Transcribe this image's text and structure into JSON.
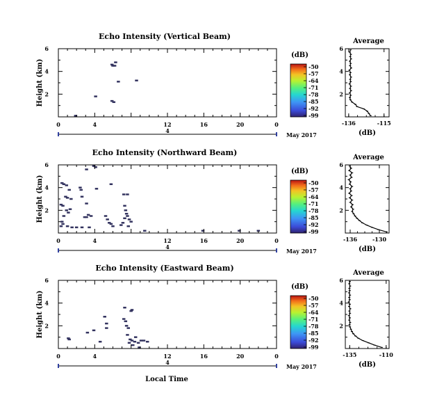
{
  "figure": {
    "x_axis_label": "Local Time",
    "date_label": "May 2017",
    "day_marker": "4",
    "cell_color": "#33335f"
  },
  "chart_data": [
    {
      "type": "heatmap",
      "title": "Echo Intensity (Vertical Beam)",
      "ylabel": "Height (km)",
      "xlim": [
        0,
        24
      ],
      "ylim": [
        0,
        6
      ],
      "x_ticks": [
        "0",
        "4",
        "12",
        "16",
        "20",
        "0"
      ],
      "y_ticks": [
        "2",
        "4",
        "6"
      ],
      "colorbar": {
        "unit": "(dB)",
        "ticks": [
          "-50",
          "-57",
          "-64",
          "-71",
          "-78",
          "-85",
          "-92",
          "-99"
        ]
      },
      "cells": [
        [
          6.0,
          4.5
        ],
        [
          6.2,
          4.5
        ],
        [
          6.3,
          4.8
        ],
        [
          5.9,
          4.6
        ],
        [
          6.6,
          3.1
        ],
        [
          4.1,
          1.8
        ],
        [
          5.9,
          1.4
        ],
        [
          6.1,
          1.3
        ],
        [
          8.6,
          3.2
        ],
        [
          1.9,
          0.1
        ]
      ],
      "profile": {
        "title": "Average",
        "xlabel": "(dB)",
        "x_ticks": [
          "-136",
          "-115"
        ],
        "y_ticks": [
          "2",
          "4",
          "6"
        ],
        "xlim": [
          -138,
          -112
        ],
        "ylim": [
          0,
          6
        ],
        "x": [
          -123,
          -124,
          -125,
          -127,
          -131,
          -132,
          -134,
          -135,
          -135.3,
          -134.8,
          -135.4,
          -134.6,
          -135.2,
          -134.7,
          -135.5,
          -134.8,
          -135.1,
          -134.6,
          -135.3,
          -134.9,
          -135.6,
          -134.5,
          -135.2,
          -134.8,
          -135.3,
          -134.6,
          -135.1,
          -134.7,
          -135.4,
          -134.9
        ],
        "y": [
          0.1,
          0.3,
          0.5,
          0.7,
          0.9,
          1.1,
          1.3,
          1.5,
          1.7,
          1.9,
          2.1,
          2.3,
          2.5,
          2.7,
          2.9,
          3.1,
          3.3,
          3.5,
          3.7,
          3.9,
          4.1,
          4.3,
          4.5,
          4.7,
          4.9,
          5.1,
          5.3,
          5.5,
          5.7,
          5.9
        ]
      }
    },
    {
      "type": "heatmap",
      "title": "Echo Intensity (Northward Beam)",
      "ylabel": "Height (km)",
      "xlim": [
        0,
        24
      ],
      "ylim": [
        0,
        6
      ],
      "x_ticks": [
        "0",
        "4",
        "12",
        "16",
        "20",
        "0"
      ],
      "y_ticks": [
        "2",
        "4",
        "6"
      ],
      "colorbar": {
        "unit": "(dB)",
        "ticks": [
          "-50",
          "-57",
          "-64",
          "-71",
          "-78",
          "-85",
          "-92",
          "-99"
        ]
      },
      "cells": [
        [
          0.4,
          4.4
        ],
        [
          0.6,
          4.3
        ],
        [
          0.9,
          4.2
        ],
        [
          1.2,
          3.8
        ],
        [
          0.8,
          3.2
        ],
        [
          1.0,
          3.1
        ],
        [
          1.4,
          3.0
        ],
        [
          0.3,
          2.5
        ],
        [
          0.5,
          2.4
        ],
        [
          0.9,
          2.0
        ],
        [
          1.1,
          1.8
        ],
        [
          1.3,
          2.1
        ],
        [
          0.6,
          1.5
        ],
        [
          0.4,
          1.0
        ],
        [
          0.5,
          0.8
        ],
        [
          1.0,
          0.6
        ],
        [
          1.5,
          0.5
        ],
        [
          2.0,
          0.5
        ],
        [
          2.6,
          0.5
        ],
        [
          3.4,
          0.5
        ],
        [
          3.1,
          1.4
        ],
        [
          3.3,
          1.6
        ],
        [
          3.6,
          1.5
        ],
        [
          2.4,
          4.0
        ],
        [
          2.5,
          3.8
        ],
        [
          3.1,
          5.6
        ],
        [
          4.1,
          5.8
        ],
        [
          3.9,
          5.9
        ],
        [
          2.9,
          1.4
        ],
        [
          5.4,
          1.2
        ],
        [
          5.6,
          0.9
        ],
        [
          5.8,
          0.8
        ],
        [
          5.2,
          1.5
        ],
        [
          6.0,
          0.6
        ],
        [
          7.2,
          3.4
        ],
        [
          7.6,
          3.4
        ],
        [
          7.3,
          2.4
        ],
        [
          7.4,
          2.0
        ],
        [
          7.5,
          1.7
        ],
        [
          7.6,
          1.5
        ],
        [
          7.3,
          1.3
        ],
        [
          7.8,
          1.2
        ],
        [
          8.0,
          1.0
        ],
        [
          7.7,
          0.6
        ],
        [
          7.1,
          0.9
        ],
        [
          6.9,
          0.7
        ],
        [
          5.8,
          4.3
        ],
        [
          4.2,
          3.9
        ],
        [
          3.1,
          2.6
        ],
        [
          2.6,
          3.2
        ],
        [
          9.5,
          0.2
        ],
        [
          15.9,
          0.2
        ],
        [
          19.9,
          0.2
        ],
        [
          22.0,
          0.2
        ],
        [
          0.3,
          0.6
        ]
      ],
      "profile": {
        "title": "Average",
        "xlabel": "(dB)",
        "x_ticks": [
          "-136",
          "-130"
        ],
        "y_ticks": [
          "2",
          "4",
          "6"
        ],
        "xlim": [
          -137,
          -128
        ],
        "ylim": [
          0,
          6
        ],
        "x": [
          -128.5,
          -130.2,
          -131.5,
          -132.6,
          -133.5,
          -134.1,
          -134.6,
          -135.0,
          -135.3,
          -135.6,
          -135.4,
          -135.8,
          -135.5,
          -136.0,
          -135.6,
          -136.1,
          -135.7,
          -136.2,
          -135.8,
          -136.0,
          -135.6,
          -136.1,
          -135.9,
          -136.3,
          -135.7,
          -136.0,
          -135.6,
          -136.2,
          -135.8,
          -136.1
        ],
        "y": [
          0.1,
          0.3,
          0.5,
          0.7,
          0.9,
          1.1,
          1.3,
          1.5,
          1.7,
          1.9,
          2.1,
          2.3,
          2.5,
          2.7,
          2.9,
          3.1,
          3.3,
          3.5,
          3.7,
          3.9,
          4.1,
          4.3,
          4.5,
          4.7,
          4.9,
          5.1,
          5.3,
          5.5,
          5.7,
          5.9
        ]
      }
    },
    {
      "type": "heatmap",
      "title": "Echo Intensity (Eastward Beam)",
      "ylabel": "Height (km)",
      "xlim": [
        0,
        24
      ],
      "ylim": [
        0,
        6
      ],
      "x_ticks": [
        "0",
        "4",
        "12",
        "16",
        "20",
        "0"
      ],
      "y_ticks": [
        "2",
        "4",
        "6"
      ],
      "colorbar": {
        "unit": "(dB)",
        "ticks": [
          "-50",
          "-57",
          "-64",
          "-71",
          "-78",
          "-85",
          "-92",
          "-99"
        ]
      },
      "cells": [
        [
          1.2,
          0.8
        ],
        [
          3.2,
          1.4
        ],
        [
          3.9,
          1.6
        ],
        [
          5.1,
          2.8
        ],
        [
          5.3,
          2.2
        ],
        [
          5.3,
          1.8
        ],
        [
          4.6,
          0.6
        ],
        [
          7.2,
          2.6
        ],
        [
          7.4,
          2.4
        ],
        [
          7.5,
          2.0
        ],
        [
          7.7,
          1.8
        ],
        [
          7.6,
          1.2
        ],
        [
          7.9,
          0.8
        ],
        [
          8.1,
          0.7
        ],
        [
          8.4,
          0.6
        ],
        [
          8.8,
          0.5
        ],
        [
          9.1,
          0.7
        ],
        [
          9.4,
          0.7
        ],
        [
          9.8,
          0.6
        ],
        [
          8.5,
          1.0
        ],
        [
          8.2,
          0.3
        ],
        [
          8.9,
          0.1
        ],
        [
          7.3,
          3.6
        ],
        [
          8.1,
          3.4
        ],
        [
          8.0,
          3.3
        ],
        [
          7.8,
          0.5
        ],
        [
          1.1,
          0.9
        ]
      ],
      "profile": {
        "title": "Average",
        "xlabel": "(dB)",
        "x_ticks": [
          "-135",
          "-110"
        ],
        "y_ticks": [
          "2",
          "4",
          "6"
        ],
        "xlim": [
          -138,
          -108
        ],
        "ylim": [
          0,
          6
        ],
        "x": [
          -113,
          -118,
          -122,
          -126,
          -129,
          -131,
          -132.5,
          -133.5,
          -134.2,
          -134.8,
          -135.1,
          -134.7,
          -135.3,
          -134.9,
          -135.5,
          -134.8,
          -135.2,
          -134.6,
          -135.4,
          -134.9,
          -135.6,
          -135.0,
          -135.3,
          -134.8,
          -135.4,
          -135.0,
          -135.2,
          -134.7,
          -135.3,
          -134.9
        ],
        "y": [
          0.1,
          0.3,
          0.5,
          0.7,
          0.9,
          1.1,
          1.3,
          1.5,
          1.7,
          1.9,
          2.1,
          2.3,
          2.5,
          2.7,
          2.9,
          3.1,
          3.3,
          3.5,
          3.7,
          3.9,
          4.1,
          4.3,
          4.5,
          4.7,
          4.9,
          5.1,
          5.3,
          5.5,
          5.7,
          5.9
        ]
      }
    }
  ]
}
